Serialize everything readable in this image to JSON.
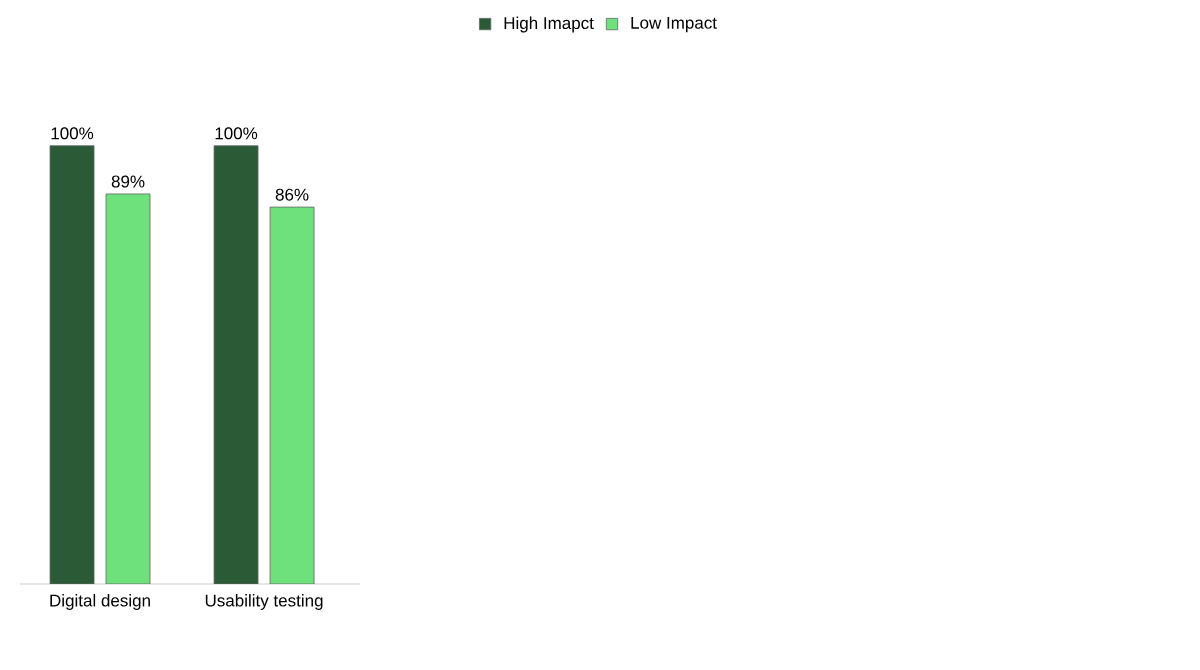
{
  "chart_data": {
    "type": "bar",
    "categories": [
      "Digital design",
      "Usability testing"
    ],
    "series": [
      {
        "name": "High Imapct",
        "color": "#2b5a36",
        "values": [
          100,
          100
        ],
        "value_labels": [
          "100%",
          "100%"
        ]
      },
      {
        "name": "Low Impact",
        "color": "#6ee07c",
        "values": [
          89,
          86
        ],
        "value_labels": [
          "89%",
          "86%"
        ]
      }
    ],
    "legend": "top"
  }
}
